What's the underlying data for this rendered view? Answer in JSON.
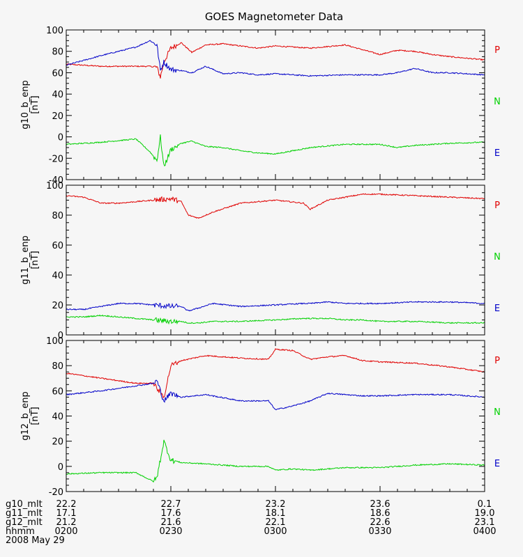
{
  "title": "GOES Magnetometer Data",
  "colors": {
    "P": "#e00000",
    "N": "#00d000",
    "E": "#0000c8",
    "background": "#f6f6f6",
    "axis": "#000000"
  },
  "components": [
    {
      "key": "P",
      "label": "P",
      "color": "#e00000"
    },
    {
      "key": "N",
      "label": "N",
      "color": "#00d000"
    },
    {
      "key": "E",
      "label": "E",
      "color": "#0000c8"
    }
  ],
  "footer": {
    "rows": [
      {
        "label": "g10_mlt",
        "values": [
          "22.2",
          "22.7",
          "23.2",
          "23.6",
          "0.1"
        ]
      },
      {
        "label": "g11_mlt",
        "values": [
          "17.1",
          "17.6",
          "18.1",
          "18.6",
          "19.0"
        ]
      },
      {
        "label": "g12_mlt",
        "values": [
          "21.2",
          "21.6",
          "22.1",
          "22.6",
          "23.1"
        ]
      },
      {
        "label": "hhmm",
        "values": [
          "0200",
          "0230",
          "0300",
          "0330",
          "0400"
        ]
      }
    ],
    "date": "2008 May 29"
  },
  "chart_data": [
    {
      "type": "line",
      "ylabel": "g10_b_enp",
      "yunit": "[nT]",
      "ylim": [
        -40,
        100
      ],
      "yticks": [
        -40,
        -20,
        0,
        20,
        40,
        60,
        80,
        100
      ],
      "ytick_labels": [
        "-40",
        "-20",
        "0",
        "20",
        "40",
        "60",
        "80",
        "100"
      ],
      "xlim": [
        "0200",
        "0400"
      ],
      "x": [
        "02:00",
        "02:10",
        "02:20",
        "02:24",
        "02:26",
        "02:27",
        "02:28",
        "02:30",
        "02:33",
        "02:36",
        "02:40",
        "02:45",
        "02:50",
        "02:55",
        "03:00",
        "03:10",
        "03:20",
        "03:30",
        "03:35",
        "03:40",
        "03:45",
        "03:50",
        "04:00"
      ],
      "series": [
        {
          "name": "P",
          "values": [
            68,
            66,
            66,
            66,
            65,
            56,
            70,
            83,
            88,
            79,
            86,
            87,
            85,
            83,
            85,
            83,
            86,
            77,
            81,
            80,
            77,
            75,
            72
          ]
        },
        {
          "name": "E",
          "values": [
            67,
            76,
            84,
            90,
            86,
            62,
            70,
            63,
            62,
            60,
            66,
            59,
            60,
            58,
            59,
            57,
            58,
            58,
            60,
            64,
            60,
            60,
            58
          ]
        },
        {
          "name": "N",
          "values": [
            -7,
            -5,
            -2,
            -14,
            -22,
            0,
            -28,
            -12,
            -6,
            -4,
            -9,
            -10,
            -13,
            -15,
            -16,
            -10,
            -7,
            -7,
            -10,
            -8,
            -7,
            -6,
            -5
          ]
        }
      ]
    },
    {
      "type": "line",
      "ylabel": "g11_b_enp",
      "yunit": "[nT]",
      "ylim": [
        0,
        100
      ],
      "yticks": [
        0,
        20,
        40,
        60,
        80,
        100
      ],
      "ytick_labels": [
        "0",
        "20",
        "40",
        "60",
        "80",
        "100"
      ],
      "xlim": [
        "0200",
        "0400"
      ],
      "x": [
        "02:00",
        "02:05",
        "02:10",
        "02:15",
        "02:20",
        "02:25",
        "02:30",
        "02:33",
        "02:35",
        "02:38",
        "02:42",
        "02:50",
        "03:00",
        "03:08",
        "03:10",
        "03:15",
        "03:20",
        "03:25",
        "03:30",
        "03:40",
        "03:50",
        "04:00"
      ],
      "series": [
        {
          "name": "P",
          "values": [
            93,
            92,
            88,
            88,
            89,
            90,
            91,
            89,
            80,
            78,
            82,
            88,
            90,
            88,
            84,
            90,
            92,
            94,
            94,
            93,
            92,
            91
          ]
        },
        {
          "name": "E",
          "values": [
            17,
            17,
            19,
            21,
            21,
            20,
            19,
            19,
            16,
            18,
            21,
            19,
            20,
            21,
            21,
            22,
            21,
            21,
            21,
            22,
            22,
            21
          ]
        },
        {
          "name": "N",
          "values": [
            12,
            12,
            13,
            12,
            11,
            10,
            9,
            9,
            8,
            8,
            9,
            9,
            10,
            11,
            11,
            11,
            10,
            10,
            9,
            9,
            8,
            8
          ]
        }
      ]
    },
    {
      "type": "line",
      "ylabel": "g12_b_enp",
      "yunit": "[nT]",
      "ylim": [
        -20,
        100
      ],
      "yticks": [
        -20,
        0,
        20,
        40,
        60,
        80,
        100
      ],
      "ytick_labels": [
        "-20",
        "0",
        "20",
        "40",
        "60",
        "80",
        "100"
      ],
      "xlim": [
        "0200",
        "0400"
      ],
      "x": [
        "02:00",
        "02:10",
        "02:20",
        "02:25",
        "02:26",
        "02:28",
        "02:30",
        "02:33",
        "02:40",
        "02:50",
        "02:58",
        "03:00",
        "03:05",
        "03:10",
        "03:15",
        "03:20",
        "03:25",
        "03:30",
        "03:40",
        "03:50",
        "04:00"
      ],
      "series": [
        {
          "name": "P",
          "values": [
            74,
            70,
            66,
            66,
            62,
            55,
            80,
            84,
            88,
            86,
            85,
            93,
            92,
            85,
            87,
            88,
            84,
            83,
            82,
            79,
            75
          ]
        },
        {
          "name": "E",
          "values": [
            57,
            60,
            64,
            66,
            68,
            52,
            58,
            55,
            57,
            52,
            52,
            45,
            48,
            52,
            58,
            57,
            56,
            56,
            57,
            57,
            55
          ]
        },
        {
          "name": "N",
          "values": [
            -6,
            -5,
            -5,
            -12,
            -9,
            20,
            5,
            3,
            2,
            0,
            0,
            -3,
            -2,
            -3,
            -2,
            -1,
            -1,
            -1,
            1,
            2,
            1
          ]
        }
      ]
    }
  ]
}
